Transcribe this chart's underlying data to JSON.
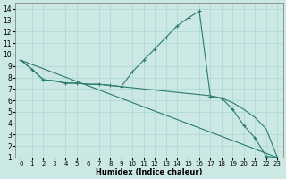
{
  "xlabel": "Humidex (Indice chaleur)",
  "bg_color": "#cce8e4",
  "line_color": "#2a7a70",
  "xlim": [
    -0.5,
    23.5
  ],
  "ylim": [
    1,
    14.5
  ],
  "xticks": [
    0,
    1,
    2,
    3,
    4,
    5,
    6,
    7,
    8,
    9,
    10,
    11,
    12,
    13,
    14,
    15,
    16,
    17,
    18,
    19,
    20,
    21,
    22,
    23
  ],
  "yticks": [
    1,
    2,
    3,
    4,
    5,
    6,
    7,
    8,
    9,
    10,
    11,
    12,
    13,
    14
  ],
  "series_main": {
    "x": [
      0,
      1,
      2,
      3,
      4,
      5,
      6,
      7,
      8,
      9,
      10,
      11,
      12,
      13,
      14,
      15,
      16,
      17,
      18,
      19,
      20,
      21,
      22,
      23
    ],
    "y": [
      9.5,
      8.7,
      7.8,
      7.7,
      7.5,
      7.5,
      7.4,
      7.4,
      7.3,
      7.2,
      8.5,
      9.5,
      10.5,
      11.5,
      12.5,
      13.2,
      13.8,
      6.3,
      6.2,
      5.2,
      3.8,
      2.7,
      1.1,
      1.0
    ]
  },
  "series_diagonal": {
    "x": [
      0,
      23
    ],
    "y": [
      9.5,
      1.0
    ]
  },
  "series_slow": {
    "x": [
      0,
      1,
      2,
      3,
      4,
      5,
      6,
      7,
      8,
      9,
      10,
      11,
      12,
      13,
      14,
      15,
      16,
      17,
      18,
      19,
      20,
      21,
      22,
      23
    ],
    "y": [
      9.5,
      8.7,
      7.8,
      7.7,
      7.5,
      7.5,
      7.4,
      7.4,
      7.3,
      7.2,
      7.1,
      7.0,
      6.9,
      6.8,
      6.7,
      6.6,
      6.5,
      6.4,
      6.2,
      5.8,
      5.2,
      4.5,
      3.5,
      1.0
    ]
  },
  "xlabel_fontsize": 6,
  "tick_fontsize_x": 5,
  "tick_fontsize_y": 5.5,
  "grid_color": "#aad8d0",
  "linewidth": 0.8,
  "marker_size": 3.5,
  "marker_lw": 0.8
}
